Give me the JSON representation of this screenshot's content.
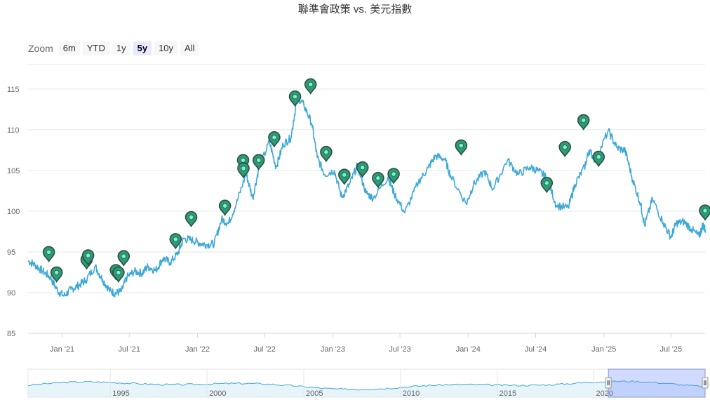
{
  "chart_data": {
    "type": "line",
    "title": "聯準會政策 vs. 美元指數",
    "xlabel": "",
    "ylabel": "",
    "ylim": [
      85,
      118
    ],
    "y_ticks": [
      "85",
      "90",
      "95",
      "100",
      "105",
      "110",
      "115"
    ],
    "x_ticks": [
      "Jan '21",
      "Jul '21",
      "Jan '22",
      "Jul '22",
      "Jan '23",
      "Jul '23",
      "Jan '24",
      "Jul '24",
      "Jan '25",
      "Jul '25"
    ],
    "x_range": [
      "2020-10",
      "2025-10"
    ],
    "grid": true,
    "line_color": "#3ea8d6",
    "marker_color": "#2e9a76",
    "series": [
      {
        "name": "",
        "points": [
          [
            "2020-10-01",
            93.9
          ],
          [
            "2020-10-20",
            93.4
          ],
          [
            "2020-11-10",
            92.6
          ],
          [
            "2020-11-30",
            91.9
          ],
          [
            "2020-12-20",
            90.2
          ],
          [
            "2021-01-06",
            89.6
          ],
          [
            "2021-01-25",
            90.4
          ],
          [
            "2021-02-15",
            90.9
          ],
          [
            "2021-03-05",
            91.5
          ],
          [
            "2021-03-31",
            93.2
          ],
          [
            "2021-04-20",
            91.6
          ],
          [
            "2021-05-10",
            90.2
          ],
          [
            "2021-05-25",
            89.9
          ],
          [
            "2021-06-10",
            90.2
          ],
          [
            "2021-06-25",
            91.9
          ],
          [
            "2021-07-15",
            92.6
          ],
          [
            "2021-08-05",
            92.4
          ],
          [
            "2021-08-20",
            93.2
          ],
          [
            "2021-09-10",
            92.7
          ],
          [
            "2021-09-30",
            94.2
          ],
          [
            "2021-10-20",
            93.7
          ],
          [
            "2021-11-10",
            94.9
          ],
          [
            "2021-11-24",
            96.6
          ],
          [
            "2021-12-15",
            96.5
          ],
          [
            "2022-01-05",
            96.1
          ],
          [
            "2022-01-25",
            95.9
          ],
          [
            "2022-02-15",
            96.0
          ],
          [
            "2022-03-07",
            99.0
          ],
          [
            "2022-03-25",
            98.5
          ],
          [
            "2022-04-15",
            100.8
          ],
          [
            "2022-05-12",
            104.6
          ],
          [
            "2022-05-30",
            101.6
          ],
          [
            "2022-06-15",
            105.2
          ],
          [
            "2022-07-14",
            108.5
          ],
          [
            "2022-08-01",
            105.4
          ],
          [
            "2022-08-20",
            108.2
          ],
          [
            "2022-09-10",
            109.0
          ],
          [
            "2022-09-27",
            114.1
          ],
          [
            "2022-10-15",
            113.0
          ],
          [
            "2022-11-05",
            110.8
          ],
          [
            "2022-11-20",
            106.6
          ],
          [
            "2022-12-10",
            104.5
          ],
          [
            "2023-01-05",
            105.0
          ],
          [
            "2023-01-25",
            101.7
          ],
          [
            "2023-02-15",
            103.3
          ],
          [
            "2023-03-08",
            105.6
          ],
          [
            "2023-04-01",
            102.2
          ],
          [
            "2023-04-20",
            101.6
          ],
          [
            "2023-05-30",
            104.2
          ],
          [
            "2023-06-15",
            102.2
          ],
          [
            "2023-07-14",
            99.8
          ],
          [
            "2023-08-20",
            103.6
          ],
          [
            "2023-09-15",
            105.3
          ],
          [
            "2023-10-05",
            106.8
          ],
          [
            "2023-10-30",
            106.4
          ],
          [
            "2023-11-15",
            104.3
          ],
          [
            "2023-12-27",
            100.9
          ],
          [
            "2024-01-15",
            103.2
          ],
          [
            "2024-02-14",
            104.9
          ],
          [
            "2024-03-08",
            102.7
          ],
          [
            "2024-04-16",
            106.3
          ],
          [
            "2024-05-15",
            104.5
          ],
          [
            "2024-06-15",
            105.4
          ],
          [
            "2024-07-10",
            104.9
          ],
          [
            "2024-07-31",
            104.1
          ],
          [
            "2024-08-26",
            100.7
          ],
          [
            "2024-09-27",
            100.4
          ],
          [
            "2024-10-15",
            103.3
          ],
          [
            "2024-11-10",
            105.4
          ],
          [
            "2024-11-22",
            107.5
          ],
          [
            "2024-12-10",
            106.2
          ],
          [
            "2025-01-13",
            109.9
          ],
          [
            "2025-02-05",
            107.8
          ],
          [
            "2025-02-28",
            107.4
          ],
          [
            "2025-03-20",
            103.8
          ],
          [
            "2025-04-10",
            100.9
          ],
          [
            "2025-04-21",
            98.2
          ],
          [
            "2025-05-12",
            101.5
          ],
          [
            "2025-06-10",
            98.6
          ],
          [
            "2025-07-01",
            96.8
          ],
          [
            "2025-07-15",
            98.5
          ],
          [
            "2025-08-05",
            98.7
          ],
          [
            "2025-08-25",
            97.8
          ],
          [
            "2025-09-15",
            96.9
          ],
          [
            "2025-09-25",
            98.3
          ],
          [
            "2025-10-02",
            97.7
          ]
        ]
      }
    ],
    "flags": [
      [
        "2020-11-26",
        94.7
      ],
      [
        "2020-12-17",
        92.2
      ],
      [
        "2021-03-08",
        93.8
      ],
      [
        "2021-03-12",
        94.3
      ],
      [
        "2021-05-26",
        92.5
      ],
      [
        "2021-06-02",
        92.2
      ],
      [
        "2021-06-16",
        94.2
      ],
      [
        "2021-11-03",
        96.3
      ],
      [
        "2021-12-15",
        99.0
      ],
      [
        "2022-03-16",
        100.4
      ],
      [
        "2022-05-04",
        106.0
      ],
      [
        "2022-05-05",
        105.0
      ],
      [
        "2022-06-15",
        106.0
      ],
      [
        "2022-07-27",
        108.8
      ],
      [
        "2022-09-21",
        113.8
      ],
      [
        "2022-11-02",
        115.3
      ],
      [
        "2022-12-14",
        107.0
      ],
      [
        "2023-02-01",
        104.2
      ],
      [
        "2023-03-22",
        105.1
      ],
      [
        "2023-05-03",
        103.8
      ],
      [
        "2023-06-14",
        104.3
      ],
      [
        "2023-12-13",
        107.8
      ],
      [
        "2024-07-31",
        103.2
      ],
      [
        "2024-09-18",
        107.6
      ],
      [
        "2024-11-07",
        110.9
      ],
      [
        "2024-12-18",
        106.4
      ],
      [
        "2025-10-01",
        99.8
      ]
    ],
    "navigator": {
      "x_range": [
        "1990-10",
        "2025-10"
      ],
      "x_ticks": [
        "1995",
        "2000",
        "2005",
        "2010",
        "2015",
        "2020"
      ],
      "selection": [
        "2020-10",
        "2025-10"
      ]
    }
  },
  "zoom": {
    "label": "Zoom",
    "buttons": [
      "6m",
      "YTD",
      "1y",
      "5y",
      "10y",
      "All"
    ],
    "active": "5y"
  }
}
